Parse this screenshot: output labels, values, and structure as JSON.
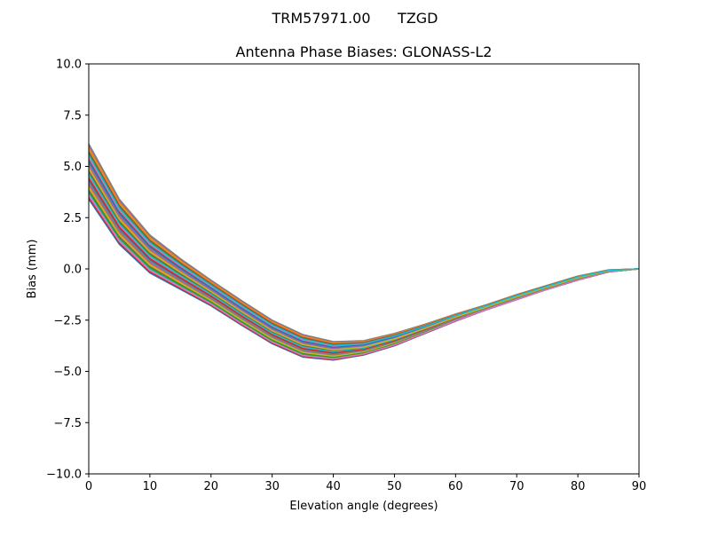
{
  "chart_data": {
    "type": "line",
    "suptitle": "TRM57971.00      TZGD",
    "title": "Antenna Phase Biases: GLONASS-L2",
    "xlabel": "Elevation angle (degrees)",
    "ylabel": "Bias (mm)",
    "xlim": [
      0,
      90
    ],
    "ylim": [
      -10,
      10
    ],
    "xticks": [
      0,
      10,
      20,
      30,
      40,
      50,
      60,
      70,
      80,
      90
    ],
    "yticks": [
      -10.0,
      -7.5,
      -5.0,
      -2.5,
      0.0,
      2.5,
      5.0,
      7.5,
      10.0
    ],
    "xtick_labels": [
      "0",
      "10",
      "20",
      "30",
      "40",
      "50",
      "60",
      "70",
      "80",
      "90"
    ],
    "ytick_labels": [
      "−10.0",
      "−7.5",
      "−5.0",
      "−2.5",
      "0.0",
      "2.5",
      "5.0",
      "7.5",
      "10.0"
    ],
    "grid": false,
    "legend": false,
    "x": [
      0,
      5,
      10,
      15,
      20,
      25,
      30,
      35,
      40,
      45,
      50,
      55,
      60,
      65,
      70,
      75,
      80,
      85,
      90
    ],
    "series_upper": [
      6.1,
      3.4,
      1.65,
      0.5,
      -0.55,
      -1.55,
      -2.5,
      -3.2,
      -3.55,
      -3.5,
      -3.15,
      -2.7,
      -2.2,
      -1.75,
      -1.25,
      -0.8,
      -0.35,
      -0.05,
      0.0
    ],
    "series_lower": [
      3.4,
      1.2,
      -0.2,
      -1.0,
      -1.8,
      -2.75,
      -3.65,
      -4.3,
      -4.45,
      -4.2,
      -3.75,
      -3.15,
      -2.55,
      -2.0,
      -1.5,
      -1.0,
      -0.55,
      -0.15,
      0.0
    ],
    "series_count": 30,
    "colors": [
      "#1f77b4",
      "#ff7f0e",
      "#2ca02c",
      "#d62728",
      "#9467bd",
      "#8c564b",
      "#e377c2",
      "#7f7f7f",
      "#bcbd22",
      "#17becf"
    ]
  }
}
